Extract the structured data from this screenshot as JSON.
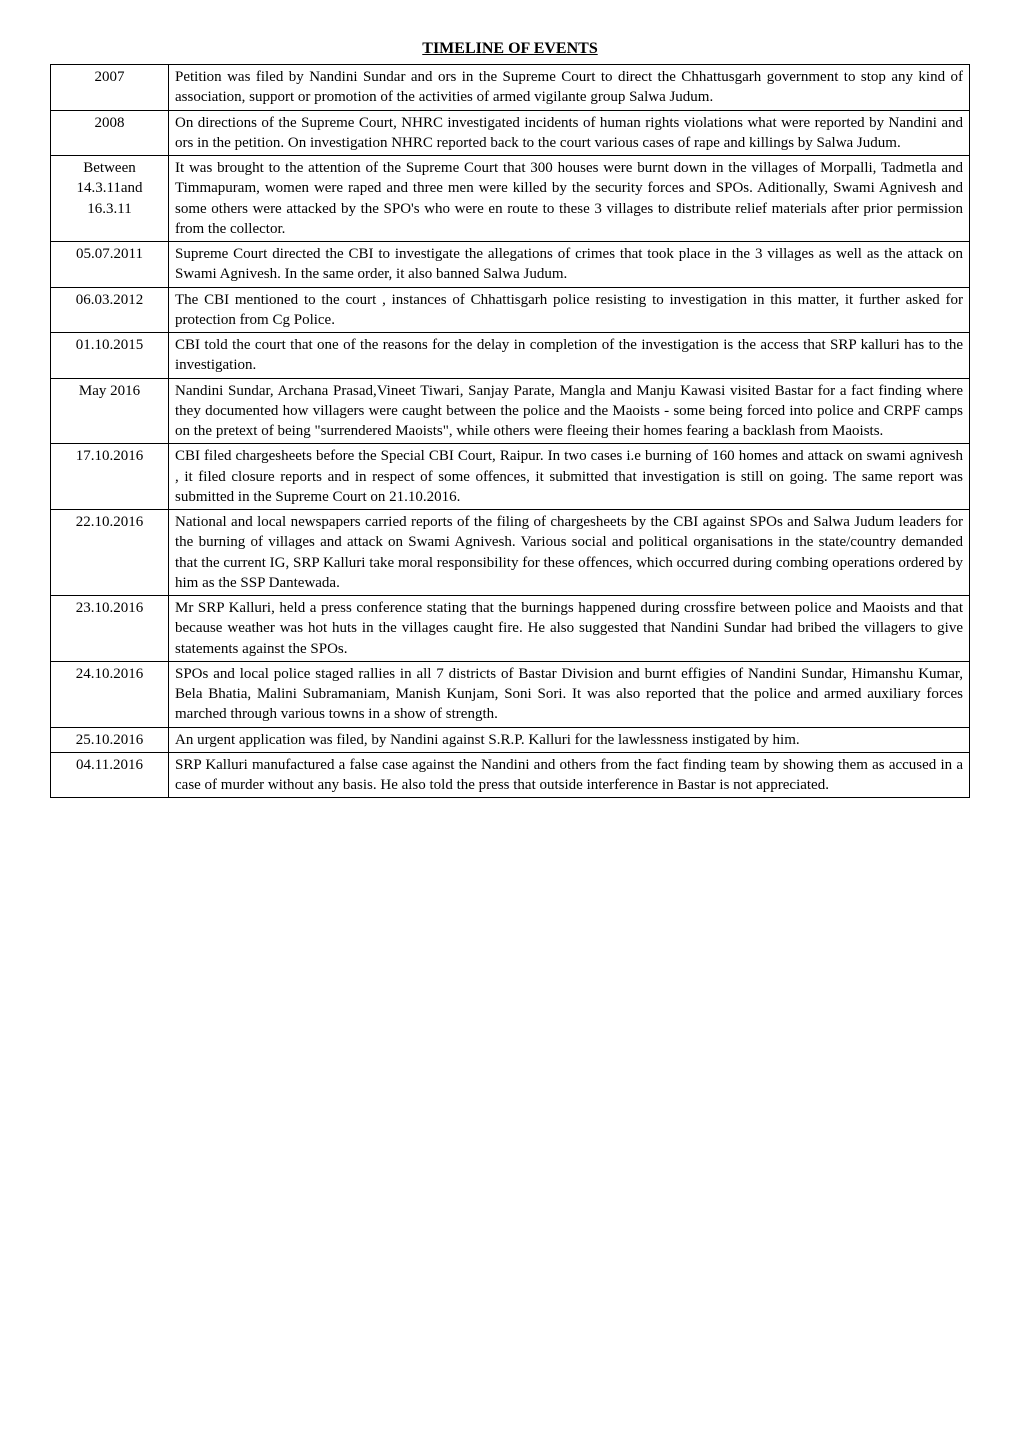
{
  "title": "TIMELINE OF EVENTS",
  "rows": [
    {
      "date": "2007",
      "text": "Petition was filed by Nandini Sundar and ors in the Supreme Court to direct the Chhattusgarh government to stop any kind of association, support or promotion of the activities of armed vigilante group Salwa Judum."
    },
    {
      "date": "2008",
      "text": "On directions of the Supreme Court, NHRC investigated incidents of human rights violations what were reported by Nandini and ors in the petition. On investigation NHRC reported back to the court various cases of rape and killings by Salwa Judum."
    },
    {
      "date": "Between 14.3.11and 16.3.11",
      "text": "It was brought to the attention of the Supreme Court that 300 houses were burnt down in the villages of Morpalli, Tadmetla and Timmapuram, women were raped and three men were killed by the security forces and SPOs. Aditionally, Swami Agnivesh and some others were attacked by the SPO's who were en route to these 3 villages to distribute relief materials after prior permission from the collector."
    },
    {
      "date": "05.07.2011",
      "text": "Supreme Court directed the CBI to investigate the allegations of crimes that took place in the 3 villages as well as the attack on Swami Agnivesh. In the same order, it also banned Salwa Judum."
    },
    {
      "date": "06.03.2012",
      "text": "The CBI mentioned to the court , instances of Chhattisgarh police resisting to investigation in this matter, it further asked for protection from Cg Police."
    },
    {
      "date": "01.10.2015",
      "text": "CBI told the court that one of the reasons for the delay in completion of the investigation is the access that SRP kalluri has to the investigation."
    },
    {
      "date": "May 2016",
      "text": "Nandini Sundar, Archana Prasad,Vineet Tiwari, Sanjay Parate, Mangla and Manju Kawasi visited Bastar for a fact finding where they documented how villagers were caught between the police and the Maoists - some being forced into police and CRPF camps on the pretext of being \"surrendered Maoists\", while others were fleeing their homes fearing a backlash from Maoists."
    },
    {
      "date": "17.10.2016",
      "text": "CBI filed chargesheets before the Special CBI Court, Raipur. In two cases i.e burning of 160 homes and attack on swami agnivesh , it filed closure reports and in respect of some offences, it submitted that investigation is still on going. The same report was submitted in the Supreme Court on 21.10.2016."
    },
    {
      "date": "22.10.2016",
      "text": "National and local newspapers carried reports of the filing of chargesheets by the CBI against SPOs and Salwa Judum leaders for the burning of villages and attack on Swami Agnivesh. Various social and political organisations in the state/country demanded that the current IG, SRP Kalluri take moral responsibility for these offences, which occurred during combing operations ordered by him as the SSP Dantewada."
    },
    {
      "date": "23.10.2016",
      "text": "Mr SRP Kalluri, held a press conference stating that the burnings happened during crossfire between police and Maoists and that because weather was hot huts in the villages caught fire. He also suggested that Nandini Sundar had bribed the villagers to give statements against the SPOs."
    },
    {
      "date": "24.10.2016",
      "text": "SPOs and local police staged rallies in all 7 districts of Bastar Division and burnt effigies of Nandini Sundar, Himanshu Kumar, Bela Bhatia, Malini Subramaniam, Manish Kunjam, Soni Sori. It was also reported that the police and armed auxiliary forces marched through various towns in a show of strength."
    },
    {
      "date": "25.10.2016",
      "text": "An urgent application was filed, by Nandini against S.R.P. Kalluri for the lawlessness instigated by him."
    },
    {
      "date": "04.11.2016",
      "text": "SRP Kalluri manufactured a false case against the Nandini and others from the fact finding team by showing them as accused in a case of murder without any basis. He also told the press that outside interference in Bastar is not appreciated."
    }
  ]
}
